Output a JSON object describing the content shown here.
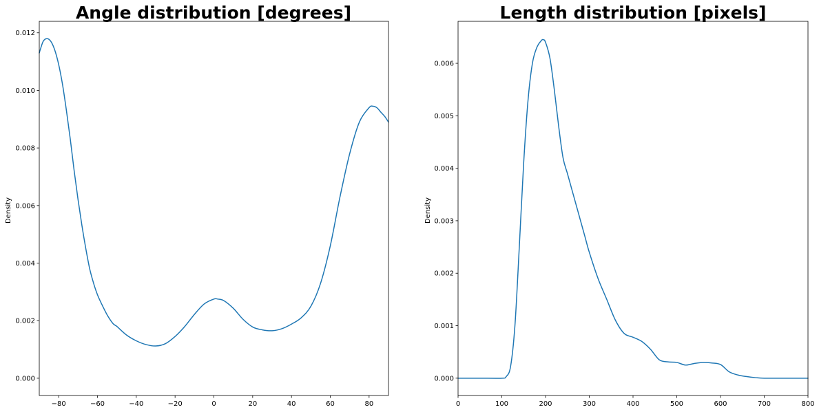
{
  "chart_data": [
    {
      "type": "line",
      "title": "Angle distribution [degrees]",
      "xlabel": "",
      "ylabel": "Density",
      "xlim": [
        -90,
        90
      ],
      "ylim": [
        -0.0006,
        0.0124
      ],
      "xticks": [
        -80,
        -60,
        -40,
        -20,
        0,
        20,
        40,
        60,
        80
      ],
      "yticks": [
        0.0,
        0.002,
        0.004,
        0.006,
        0.008,
        0.01,
        0.012
      ],
      "ytick_labels": [
        "0.000",
        "0.002",
        "0.004",
        "0.006",
        "0.008",
        "0.010",
        "0.012"
      ],
      "grid": false,
      "color": "#1f77b4",
      "series": [
        {
          "x": [
            -90,
            -88,
            -86,
            -84,
            -82,
            -80,
            -78,
            -76,
            -74,
            -72,
            -70,
            -68,
            -66,
            -64,
            -62,
            -60,
            -58,
            -55,
            -52,
            -50,
            -45,
            -40,
            -35,
            -30,
            -25,
            -20,
            -15,
            -10,
            -5,
            0,
            2,
            5,
            10,
            15,
            20,
            25,
            30,
            35,
            40,
            45,
            50,
            55,
            60,
            65,
            70,
            75,
            80,
            82,
            84,
            86,
            88,
            90
          ],
          "y": [
            0.0113,
            0.0117,
            0.0118,
            0.0117,
            0.0114,
            0.0109,
            0.0102,
            0.0093,
            0.0083,
            0.0072,
            0.0062,
            0.0053,
            0.0045,
            0.0038,
            0.0033,
            0.0029,
            0.0026,
            0.0022,
            0.0019,
            0.0018,
            0.0015,
            0.0013,
            0.00117,
            0.00112,
            0.0012,
            0.00145,
            0.0018,
            0.00222,
            0.00258,
            0.00275,
            0.00275,
            0.0027,
            0.00243,
            0.00205,
            0.00178,
            0.00168,
            0.00165,
            0.00172,
            0.00188,
            0.0021,
            0.0025,
            0.0033,
            0.0046,
            0.0063,
            0.0078,
            0.0089,
            0.0094,
            0.00945,
            0.0094,
            0.00925,
            0.0091,
            0.0089
          ]
        }
      ]
    },
    {
      "type": "line",
      "title": "Length distribution [pixels]",
      "xlabel": "",
      "ylabel": "Density",
      "xlim": [
        0,
        800
      ],
      "ylim": [
        -0.00033,
        0.0068
      ],
      "xticks": [
        0,
        100,
        200,
        300,
        400,
        500,
        600,
        700,
        800
      ],
      "yticks": [
        0.0,
        0.001,
        0.002,
        0.003,
        0.004,
        0.005,
        0.006
      ],
      "ytick_labels": [
        "0.000",
        "0.001",
        "0.002",
        "0.003",
        "0.004",
        "0.005",
        "0.006"
      ],
      "grid": false,
      "color": "#1f77b4",
      "series": [
        {
          "x": [
            0,
            50,
            100,
            110,
            120,
            130,
            140,
            150,
            160,
            170,
            180,
            190,
            195,
            200,
            210,
            220,
            230,
            240,
            250,
            260,
            270,
            280,
            290,
            300,
            320,
            340,
            360,
            380,
            400,
            420,
            440,
            460,
            480,
            500,
            520,
            540,
            560,
            580,
            600,
            620,
            640,
            660,
            680,
            700,
            750,
            800
          ],
          "y": [
            0,
            0,
            0,
            3e-05,
            0.00022,
            0.001,
            0.0025,
            0.0041,
            0.0053,
            0.006,
            0.0063,
            0.00643,
            0.00645,
            0.0064,
            0.0061,
            0.0055,
            0.0048,
            0.0042,
            0.0039,
            0.0036,
            0.0033,
            0.003,
            0.0027,
            0.0024,
            0.0019,
            0.0015,
            0.0011,
            0.00085,
            0.00078,
            0.0007,
            0.00055,
            0.00035,
            0.00031,
            0.0003,
            0.00025,
            0.00028,
            0.0003,
            0.00029,
            0.00026,
            0.00012,
            6e-05,
            3e-05,
            1e-05,
            0,
            0,
            0
          ]
        }
      ]
    }
  ]
}
